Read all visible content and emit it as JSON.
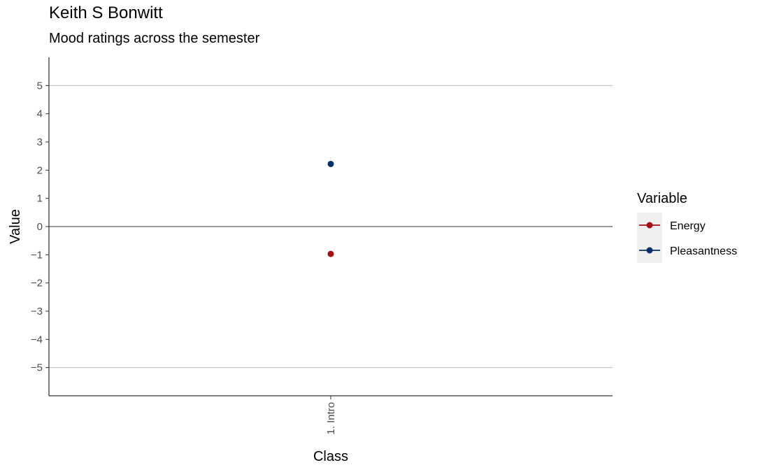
{
  "chart_data": {
    "type": "scatter",
    "title": "Keith S Bonwitt",
    "subtitle": "Mood ratings across the semester",
    "xlabel": "Class",
    "ylabel": "Value",
    "categories": [
      "1. Intro"
    ],
    "ylim": [
      -6,
      6
    ],
    "yticks": [
      5,
      4,
      3,
      2,
      1,
      0,
      -1,
      -2,
      -3,
      -4,
      -5
    ],
    "ytick_labels": [
      "5",
      "4",
      "3",
      "2",
      "1",
      "0",
      "−1",
      "−2",
      "−3",
      "−4",
      "−5"
    ],
    "reference_lines": [
      5,
      -5
    ],
    "zero_line": 0,
    "grid": false,
    "legend_title": "Variable",
    "legend_position": "right",
    "series": [
      {
        "name": "Energy",
        "color": "#A50F15",
        "values": [
          -0.97
        ]
      },
      {
        "name": "Pleasantness",
        "color": "#08306B",
        "values": [
          2.22
        ]
      }
    ]
  }
}
